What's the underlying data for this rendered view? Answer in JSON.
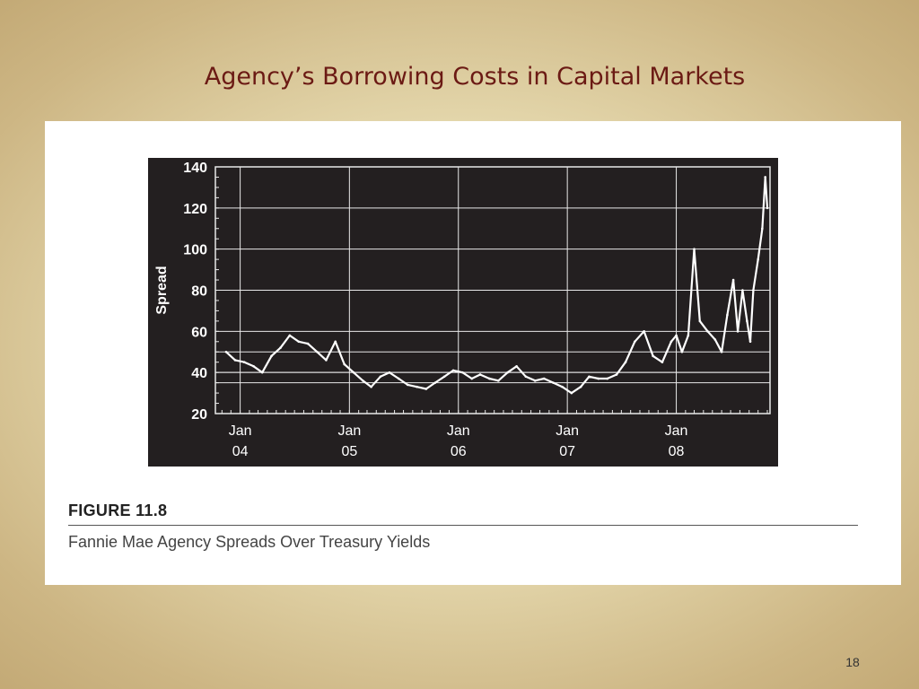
{
  "slide": {
    "title": "Agency’s Borrowing Costs in Capital Markets",
    "page_number": "18"
  },
  "figure": {
    "label": "FIGURE 11.8",
    "caption": "Fannie Mae Agency Spreads Over Treasury Yields"
  },
  "chart_data": {
    "type": "line",
    "title": "",
    "xlabel": "",
    "ylabel": "Spread",
    "ylim": [
      20,
      140
    ],
    "yticks": [
      20,
      40,
      60,
      80,
      100,
      120,
      140
    ],
    "xlim": [
      "2003-10-10",
      "2008-11-10"
    ],
    "xticks": [
      {
        "date": "2004-01-01",
        "line1": "Jan",
        "line2": "04"
      },
      {
        "date": "2005-01-01",
        "line1": "Jan",
        "line2": "05"
      },
      {
        "date": "2006-01-01",
        "line1": "Jan",
        "line2": "06"
      },
      {
        "date": "2007-01-01",
        "line1": "Jan",
        "line2": "07"
      },
      {
        "date": "2008-01-01",
        "line1": "Jan",
        "line2": "08"
      }
    ],
    "reference_lines_y": [
      35,
      40,
      50
    ],
    "grid": true,
    "style": {
      "background": "#231f20",
      "line_color": "#ffffff",
      "grid_color": "#e8e8e8"
    },
    "series": [
      {
        "points": [
          [
            "2003-11-15",
            50
          ],
          [
            "2003-12-15",
            46
          ],
          [
            "2004-01-15",
            45
          ],
          [
            "2004-02-15",
            43
          ],
          [
            "2004-03-15",
            40
          ],
          [
            "2004-04-15",
            48
          ],
          [
            "2004-05-15",
            52
          ],
          [
            "2004-06-15",
            58
          ],
          [
            "2004-07-15",
            55
          ],
          [
            "2004-08-15",
            54
          ],
          [
            "2004-09-15",
            50
          ],
          [
            "2004-10-15",
            46
          ],
          [
            "2004-11-15",
            55
          ],
          [
            "2004-12-15",
            44
          ],
          [
            "2005-01-15",
            40
          ],
          [
            "2005-02-15",
            36
          ],
          [
            "2005-03-15",
            33
          ],
          [
            "2005-04-15",
            38
          ],
          [
            "2005-05-15",
            40
          ],
          [
            "2005-06-15",
            37
          ],
          [
            "2005-07-15",
            34
          ],
          [
            "2005-08-15",
            33
          ],
          [
            "2005-09-15",
            32
          ],
          [
            "2005-10-15",
            35
          ],
          [
            "2005-11-15",
            38
          ],
          [
            "2005-12-15",
            41
          ],
          [
            "2006-01-15",
            40
          ],
          [
            "2006-02-15",
            37
          ],
          [
            "2006-03-15",
            39
          ],
          [
            "2006-04-15",
            37
          ],
          [
            "2006-05-15",
            36
          ],
          [
            "2006-06-15",
            40
          ],
          [
            "2006-07-15",
            43
          ],
          [
            "2006-08-15",
            38
          ],
          [
            "2006-09-15",
            36
          ],
          [
            "2006-10-15",
            37
          ],
          [
            "2006-11-15",
            35
          ],
          [
            "2006-12-15",
            33
          ],
          [
            "2007-01-15",
            30
          ],
          [
            "2007-02-15",
            33
          ],
          [
            "2007-03-15",
            38
          ],
          [
            "2007-04-15",
            37
          ],
          [
            "2007-05-15",
            37
          ],
          [
            "2007-06-15",
            39
          ],
          [
            "2007-07-15",
            45
          ],
          [
            "2007-08-15",
            55
          ],
          [
            "2007-09-15",
            60
          ],
          [
            "2007-10-15",
            48
          ],
          [
            "2007-11-15",
            45
          ],
          [
            "2007-12-15",
            55
          ],
          [
            "2008-01-01",
            58
          ],
          [
            "2008-01-20",
            50
          ],
          [
            "2008-02-10",
            58
          ],
          [
            "2008-03-01",
            100
          ],
          [
            "2008-03-20",
            65
          ],
          [
            "2008-04-15",
            60
          ],
          [
            "2008-05-10",
            56
          ],
          [
            "2008-06-01",
            50
          ],
          [
            "2008-06-20",
            68
          ],
          [
            "2008-07-10",
            85
          ],
          [
            "2008-07-25",
            60
          ],
          [
            "2008-08-10",
            80
          ],
          [
            "2008-08-25",
            65
          ],
          [
            "2008-09-05",
            55
          ],
          [
            "2008-09-15",
            80
          ],
          [
            "2008-10-01",
            95
          ],
          [
            "2008-10-15",
            110
          ],
          [
            "2008-10-25",
            135
          ],
          [
            "2008-11-01",
            120
          ]
        ]
      }
    ]
  }
}
